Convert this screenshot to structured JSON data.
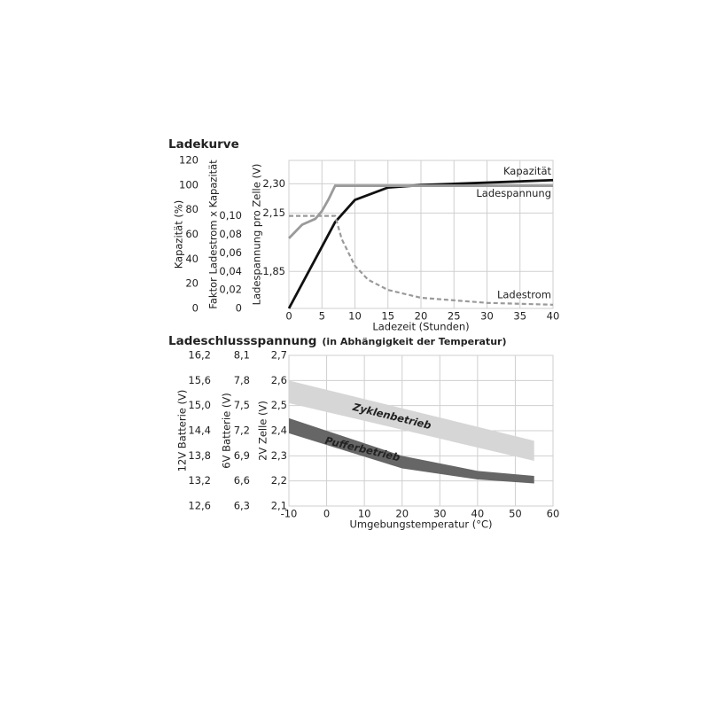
{
  "chart_data": [
    {
      "type": "line",
      "title": "Ladekurve",
      "xlabel": "Ladezeit (Stunden)",
      "xlim": [
        0,
        40
      ],
      "xticks": [
        0,
        5,
        10,
        15,
        20,
        25,
        30,
        35,
        40
      ],
      "ylabel": "Kapazität (%)",
      "ylim": [
        0,
        120
      ],
      "yticks": [
        0,
        20,
        40,
        60,
        80,
        100,
        120
      ],
      "y2label": "Faktor Ladestrom x Kapazität",
      "y2lim": [
        0,
        0.16
      ],
      "y2ticks": [
        0,
        {
          "value": 0.02,
          "label": "0,02"
        },
        {
          "value": 0.04,
          "label": "0,04"
        },
        {
          "value": 0.06,
          "label": "0,06"
        },
        {
          "value": 0.08,
          "label": "0,08"
        },
        {
          "value": 0.1,
          "label": "0,10"
        }
      ],
      "y3label": "Ladespannung pro Zelle (V)",
      "y3lim": [
        1.66,
        2.42
      ],
      "y3ticks": [
        {
          "value": 1.85,
          "label": "1,85"
        },
        {
          "value": 2.15,
          "label": "2,15"
        },
        {
          "value": 2.3,
          "label": "2,30"
        }
      ],
      "grid": true,
      "series": [
        {
          "name": "Kapazität",
          "color": "#111111",
          "dash": false,
          "axis": "y",
          "x": [
            0,
            5,
            7,
            10,
            15,
            20,
            25,
            30,
            40
          ],
          "values": [
            0,
            50,
            70,
            88,
            98,
            100,
            101,
            102,
            104
          ]
        },
        {
          "name": "Ladespannung",
          "color": "#9a9a9a",
          "dash": false,
          "axis": "y3",
          "x": [
            0,
            2,
            4,
            5,
            6,
            7,
            40
          ],
          "values": [
            2.02,
            2.09,
            2.12,
            2.16,
            2.22,
            2.29,
            2.29
          ]
        },
        {
          "name": "Ladestrom",
          "color": "#9a9a9a",
          "dash": true,
          "axis": "y2",
          "x": [
            0,
            7,
            8,
            10,
            12,
            15,
            20,
            30,
            40
          ],
          "values": [
            0.1,
            0.1,
            0.075,
            0.046,
            0.031,
            0.02,
            0.0115,
            0.006,
            0.004
          ]
        }
      ]
    },
    {
      "type": "area",
      "title": "Ladeschlussspannung",
      "subtitle": "(in Abhängigkeit der Temperatur)",
      "xlabel": "Umgebungstemperatur (°C)",
      "xlim": [
        -10,
        60
      ],
      "xticks": [
        -10,
        0,
        10,
        20,
        30,
        40,
        50,
        60
      ],
      "ylabel": "12V Batterie (V)",
      "ylim": [
        12.6,
        16.2
      ],
      "yticks": [
        {
          "value": 12.6,
          "label": "12,6"
        },
        {
          "value": 13.2,
          "label": "13,2"
        },
        {
          "value": 13.8,
          "label": "13,8"
        },
        {
          "value": 14.4,
          "label": "14,4"
        },
        {
          "value": 15.0,
          "label": "15,0"
        },
        {
          "value": 15.6,
          "label": "15,6"
        },
        {
          "value": 16.2,
          "label": "16,2"
        }
      ],
      "y2label": "6V Batterie (V)",
      "y2lim": [
        6.3,
        8.1
      ],
      "y2ticks": [
        {
          "value": 6.3,
          "label": "6,3"
        },
        {
          "value": 6.6,
          "label": "6,6"
        },
        {
          "value": 6.9,
          "label": "6,9"
        },
        {
          "value": 7.2,
          "label": "7,2"
        },
        {
          "value": 7.5,
          "label": "7,5"
        },
        {
          "value": 7.8,
          "label": "7,8"
        },
        {
          "value": 8.1,
          "label": "8,1"
        }
      ],
      "y3label": "2V Zelle (V)",
      "y3lim": [
        2.1,
        2.7
      ],
      "y3ticks": [
        {
          "value": 2.1,
          "label": "2,1"
        },
        {
          "value": 2.2,
          "label": "2,2"
        },
        {
          "value": 2.3,
          "label": "2,3"
        },
        {
          "value": 2.4,
          "label": "2,4"
        },
        {
          "value": 2.5,
          "label": "2,5"
        },
        {
          "value": 2.6,
          "label": "2,6"
        },
        {
          "value": 2.7,
          "label": "2,7"
        }
      ],
      "grid": true,
      "series": [
        {
          "name": "Zyklenbetrieb",
          "color": "#d6d6d6",
          "text_color": "#111111",
          "axis": "y3",
          "x": [
            -10,
            55
          ],
          "high": [
            2.6,
            2.36
          ],
          "low": [
            2.51,
            2.28
          ]
        },
        {
          "name": "Pufferbetrieb",
          "color": "#666666",
          "text_color": "#ffffff",
          "axis": "y3",
          "x": [
            -10,
            20,
            40,
            55
          ],
          "high": [
            2.45,
            2.3,
            2.24,
            2.22
          ],
          "low": [
            2.39,
            2.25,
            2.206,
            2.19
          ]
        }
      ]
    }
  ]
}
